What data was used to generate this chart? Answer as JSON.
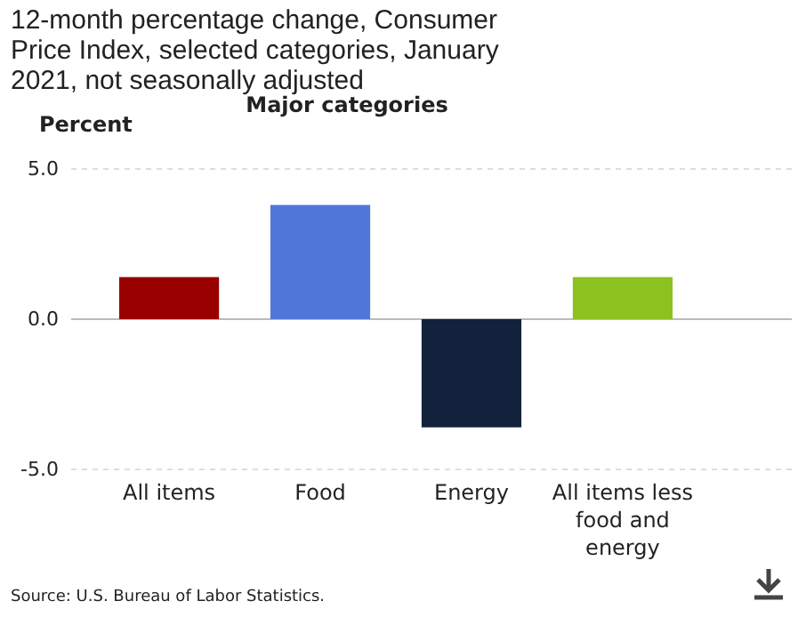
{
  "chart_data": {
    "type": "bar",
    "title": "12-month percentage change, Consumer Price Index, selected categories, January 2021, not seasonally adjusted",
    "ylabel": "Percent",
    "xlabel": "Major categories",
    "categories": [
      "All items",
      "Food",
      "Energy",
      "All items less food and energy"
    ],
    "values": [
      1.4,
      3.8,
      -3.6,
      1.4
    ],
    "colors": [
      "#990000",
      "#5077d8",
      "#14213d",
      "#8cc21f"
    ],
    "ylim": [
      -5,
      5
    ],
    "yticks": [
      {
        "value": 5,
        "label": "5.0"
      },
      {
        "value": 0,
        "label": "0.0"
      },
      {
        "value": -5,
        "label": "-5.0"
      }
    ],
    "grid": "y",
    "annotations": [
      "Source: U.S. Bureau of Labor Statistics."
    ]
  }
}
